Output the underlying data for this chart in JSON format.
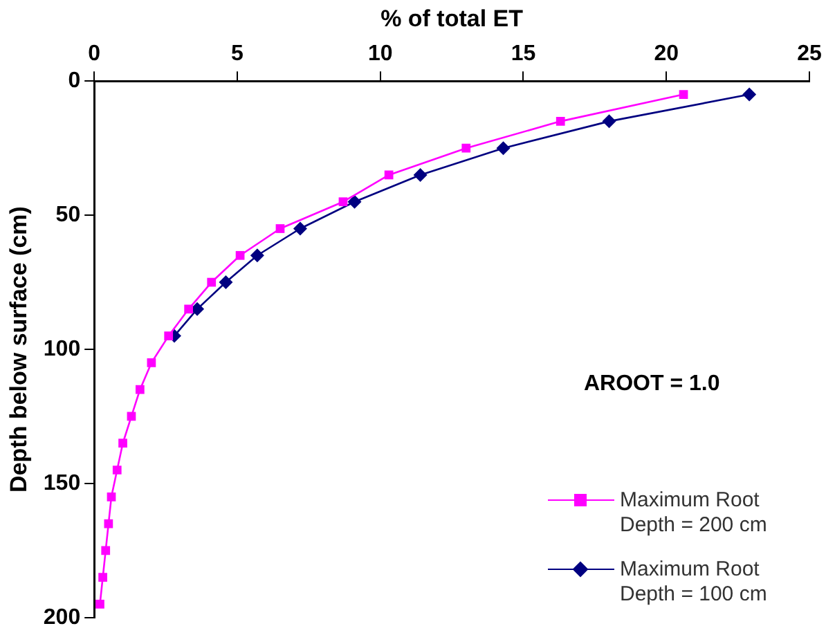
{
  "chart_data": {
    "type": "line",
    "xlabel": "% of total ET",
    "ylabel": "Depth below surface (cm)",
    "xlim": [
      0,
      25
    ],
    "xticks": [
      0,
      5,
      10,
      15,
      20,
      25
    ],
    "ylim": [
      200,
      0
    ],
    "yticks": [
      0,
      50,
      100,
      150,
      200
    ],
    "grid": false,
    "legend": "bottom right",
    "annotations": [
      "AROOT = 1.0"
    ],
    "series": [
      {
        "name": "Maximum Root Depth = 200 cm",
        "color": "#ff00ff",
        "marker": "square",
        "x": [
          20.6,
          16.3,
          13.0,
          10.3,
          8.7,
          6.5,
          5.1,
          4.1,
          3.3,
          2.6,
          2.0,
          1.6,
          1.3,
          1.0,
          0.8,
          0.6,
          0.5,
          0.4,
          0.3,
          0.2
        ],
        "values": [
          5,
          15,
          25,
          35,
          45,
          55,
          65,
          75,
          85,
          95,
          105,
          115,
          125,
          135,
          145,
          155,
          165,
          175,
          185,
          195
        ]
      },
      {
        "name": "Maximum Root Depth = 100 cm",
        "color": "#000080",
        "marker": "diamond",
        "x": [
          22.9,
          18.0,
          14.3,
          11.4,
          9.1,
          7.2,
          5.7,
          4.6,
          3.6,
          2.8
        ],
        "values": [
          5,
          15,
          25,
          35,
          45,
          55,
          65,
          75,
          85,
          95
        ]
      }
    ]
  }
}
